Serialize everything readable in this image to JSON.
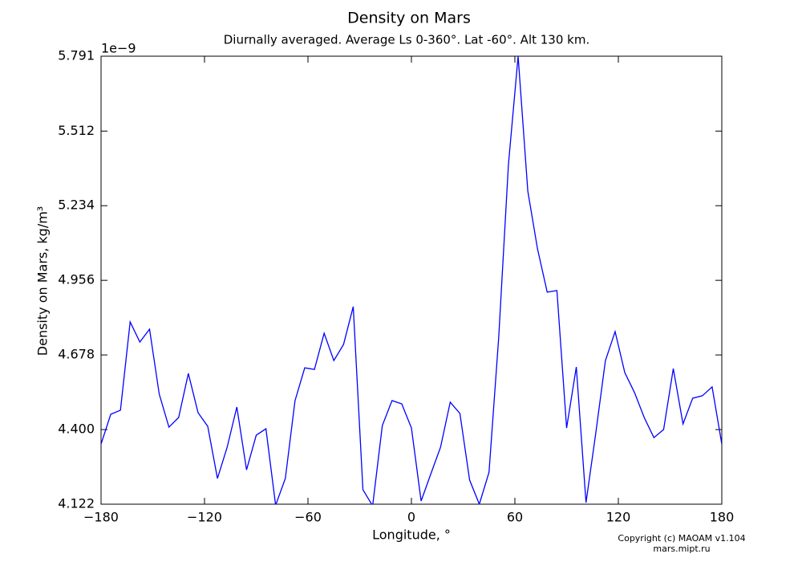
{
  "chart_data": {
    "type": "line",
    "title": "Density on Mars",
    "subtitle": "Diurnally averaged. Average Ls 0-360°. Lat -60°. Alt 130 km.",
    "x_label": "Longitude, °",
    "y_label": "Density on Mars, kg/m³",
    "offset_label": "1e−9",
    "copyright": [
      "Copyright (c) MAOAM v1.104",
      "mars.mipt.ru"
    ],
    "x": [
      -180,
      -174.375,
      -168.75,
      -163.125,
      -157.5,
      -151.875,
      -146.25,
      -140.625,
      -135,
      -129.375,
      -123.75,
      -118.125,
      -112.5,
      -106.875,
      -101.25,
      -95.625,
      -90,
      -84.375,
      -78.75,
      -73.125,
      -67.5,
      -61.875,
      -56.25,
      -50.625,
      -45,
      -39.375,
      -33.75,
      -28.125,
      -22.5,
      -16.875,
      -11.25,
      -5.625,
      0,
      5.625,
      11.25,
      16.875,
      22.5,
      28.125,
      33.75,
      39.375,
      45,
      50.625,
      56.25,
      61.875,
      67.5,
      73.125,
      78.75,
      84.375,
      90,
      95.625,
      101.25,
      106.875,
      112.5,
      118.125,
      123.75,
      129.375,
      135,
      140.625,
      146.25,
      151.875,
      157.5,
      163.125,
      168.75,
      174.375,
      180
    ],
    "series": [
      {
        "name": "Density",
        "color": "#0000ff",
        "values": [
          4.346,
          4.457,
          4.472,
          4.801,
          4.726,
          4.774,
          4.532,
          4.409,
          4.445,
          4.609,
          4.463,
          4.412,
          4.218,
          4.334,
          4.484,
          4.25,
          4.379,
          4.403,
          4.118,
          4.218,
          4.508,
          4.63,
          4.624,
          4.759,
          4.657,
          4.717,
          4.858,
          4.176,
          4.116,
          4.415,
          4.508,
          4.496,
          4.406,
          4.134,
          4.235,
          4.334,
          4.502,
          4.46,
          4.212,
          4.122,
          4.241,
          4.744,
          5.387,
          5.791,
          5.288,
          5.073,
          4.912,
          4.918,
          4.406,
          4.633,
          4.128,
          4.385,
          4.657,
          4.765,
          4.612,
          4.538,
          4.445,
          4.37,
          4.4,
          4.627,
          4.421,
          4.517,
          4.526,
          4.559,
          4.346
        ]
      }
    ],
    "xlim": [
      -180,
      180
    ],
    "xticks": [
      {
        "value": -180,
        "label": "−180"
      },
      {
        "value": -120,
        "label": "−120"
      },
      {
        "value": -60,
        "label": "−60"
      },
      0,
      60,
      120,
      180
    ],
    "ylim": [
      4.122,
      5.791
    ],
    "yticks": [
      4.122,
      {
        "value": 4.4,
        "label": "4.400"
      },
      4.678,
      4.956,
      5.234,
      5.512,
      5.791
    ]
  }
}
